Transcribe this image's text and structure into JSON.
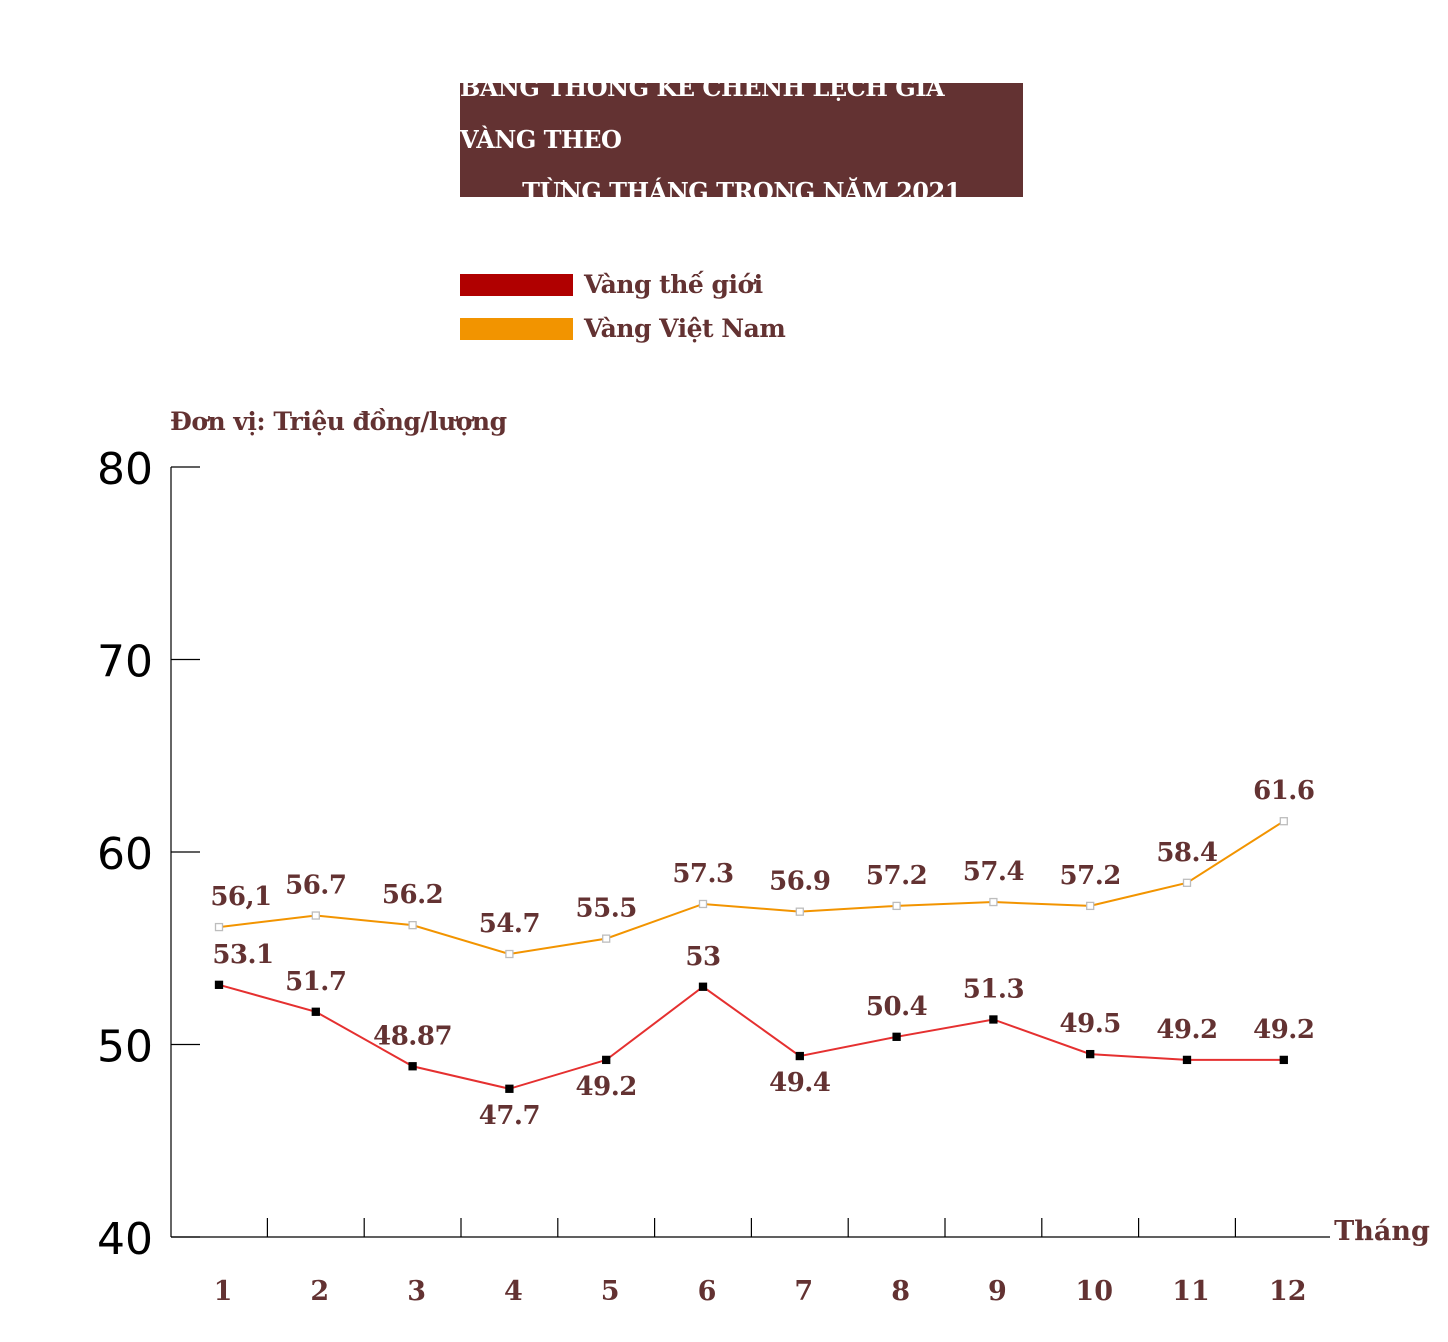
{
  "title": {
    "line1": "BẢNG THỐNG KÊ CHÊNH LỆCH GIÁ VÀNG THEO",
    "line2": "TỪNG THÁNG TRONG NĂM 2021"
  },
  "legend": [
    {
      "label": "Vàng thế giới",
      "color": "#b00000"
    },
    {
      "label": "Vàng Việt Nam",
      "color": "#f29400"
    }
  ],
  "unit_label": "Đơn vị: Triệu đồng/lượng",
  "colors": {
    "title_bg": "#633232",
    "label_text": "#633232",
    "world_line": "#e53030",
    "vn_line": "#f29400",
    "world_marker": "#000000",
    "vn_marker": "#bdbdbd"
  },
  "chart_data": {
    "type": "line",
    "xlabel": "Tháng",
    "ylabel": "Đơn vị: Triệu đồng/lượng",
    "ylim": [
      40,
      80
    ],
    "yticks": [
      40,
      50,
      60,
      70,
      80
    ],
    "categories": [
      "1",
      "2",
      "3",
      "4",
      "5",
      "6",
      "7",
      "8",
      "9",
      "10",
      "11",
      "12"
    ],
    "grid": false,
    "legend_position": "top",
    "series": [
      {
        "name": "Vàng thế giới",
        "values": [
          53.1,
          51.7,
          48.87,
          47.7,
          49.2,
          53,
          49.4,
          50.4,
          51.3,
          49.5,
          49.2,
          49.2
        ],
        "labels": [
          "53.1",
          "51.7",
          "48.87",
          "47.7",
          "49.2",
          "53",
          "49.4",
          "50.4",
          "51.3",
          "49.5",
          "49.2",
          "49.2"
        ],
        "label_side": [
          "above",
          "above",
          "above",
          "below",
          "below",
          "above",
          "below",
          "above",
          "above",
          "above",
          "above",
          "above"
        ]
      },
      {
        "name": "Vàng Việt Nam",
        "values": [
          56.1,
          56.7,
          56.2,
          54.7,
          55.5,
          57.3,
          56.9,
          57.2,
          57.4,
          57.2,
          58.4,
          61.6
        ],
        "labels": [
          "56,1",
          "56.7",
          "56.2",
          "54.7",
          "55.5",
          "57.3",
          "56.9",
          "57.2",
          "57.4",
          "57.2",
          "58.4",
          "61.6"
        ],
        "label_side": [
          "above",
          "above",
          "above",
          "above",
          "above",
          "above",
          "above",
          "above",
          "above",
          "above",
          "above",
          "above"
        ]
      }
    ]
  }
}
